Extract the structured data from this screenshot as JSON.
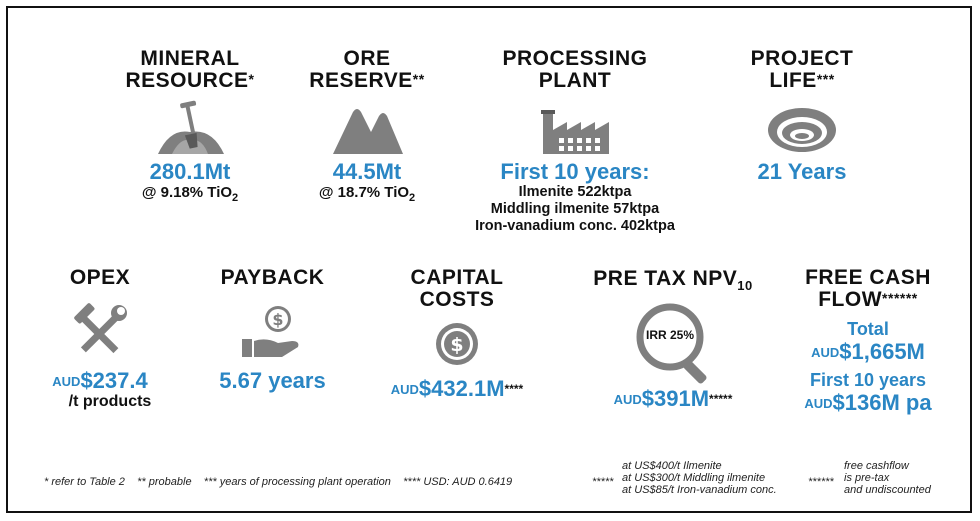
{
  "row1": {
    "mineral_resource": {
      "title_line1": "MINERAL",
      "title_line2": "RESOURCE",
      "note_mark": "*",
      "value": "280.1Mt",
      "grade_prefix": "@ 9.18% TiO",
      "grade_sub": "2"
    },
    "ore_reserve": {
      "title_line1": "ORE",
      "title_line2": "RESERVE",
      "note_mark": "**",
      "value": "44.5Mt",
      "grade_prefix": "@ 18.7% TiO",
      "grade_sub": "2"
    },
    "processing_plant": {
      "title_line1": "PROCESSING",
      "title_line2": "PLANT",
      "value": "First 10 years:",
      "line1": "Ilmenite 522ktpa",
      "line2": "Middling ilmenite 57ktpa",
      "line3": "Iron-vanadium conc. 402ktpa"
    },
    "project_life": {
      "title_line1": "PROJECT",
      "title_line2": "LIFE",
      "note_mark": "***",
      "value": "21 Years"
    }
  },
  "row2": {
    "opex": {
      "title": "OPEX",
      "currency": "AUD",
      "value": "$237.4",
      "unit": "/t products"
    },
    "payback": {
      "title": "PAYBACK",
      "value": "5.67 years"
    },
    "capital_costs": {
      "title_line1": "CAPITAL",
      "title_line2": "COSTS",
      "currency": "AUD",
      "value": "$432.1M",
      "note_mark": "****"
    },
    "npv": {
      "title_prefix": "PRE TAX NPV",
      "title_sub": "10",
      "irr": "IRR 25%",
      "currency": "AUD",
      "value": "$391M",
      "note_mark": "*****"
    },
    "free_cash_flow": {
      "title_line1": "FREE CASH",
      "title_line2": "FLOW",
      "note_mark": "******",
      "total_label": "Total",
      "total_currency": "AUD",
      "total_value": "$1,665M",
      "first_label": "First 10 years",
      "first_currency": "AUD",
      "first_value": "$136M pa"
    }
  },
  "footnotes": {
    "main": "* refer to Table 2    ** probable    *** years of processing plant operation    **** USD: AUD 0.6419",
    "five_mark": "*****",
    "five_line1": "at US$400/t Ilmenite",
    "five_line2": "at US$300/t Middling ilmenite",
    "five_line3": "at US$85/t Iron-vanadium conc.",
    "six_mark": "******",
    "six_line1": "free cashflow",
    "six_line2": "is pre-tax",
    "six_line3": "and undiscounted"
  },
  "colors": {
    "accent": "#2a86c4",
    "icon_grey": "#7f7f7f"
  }
}
